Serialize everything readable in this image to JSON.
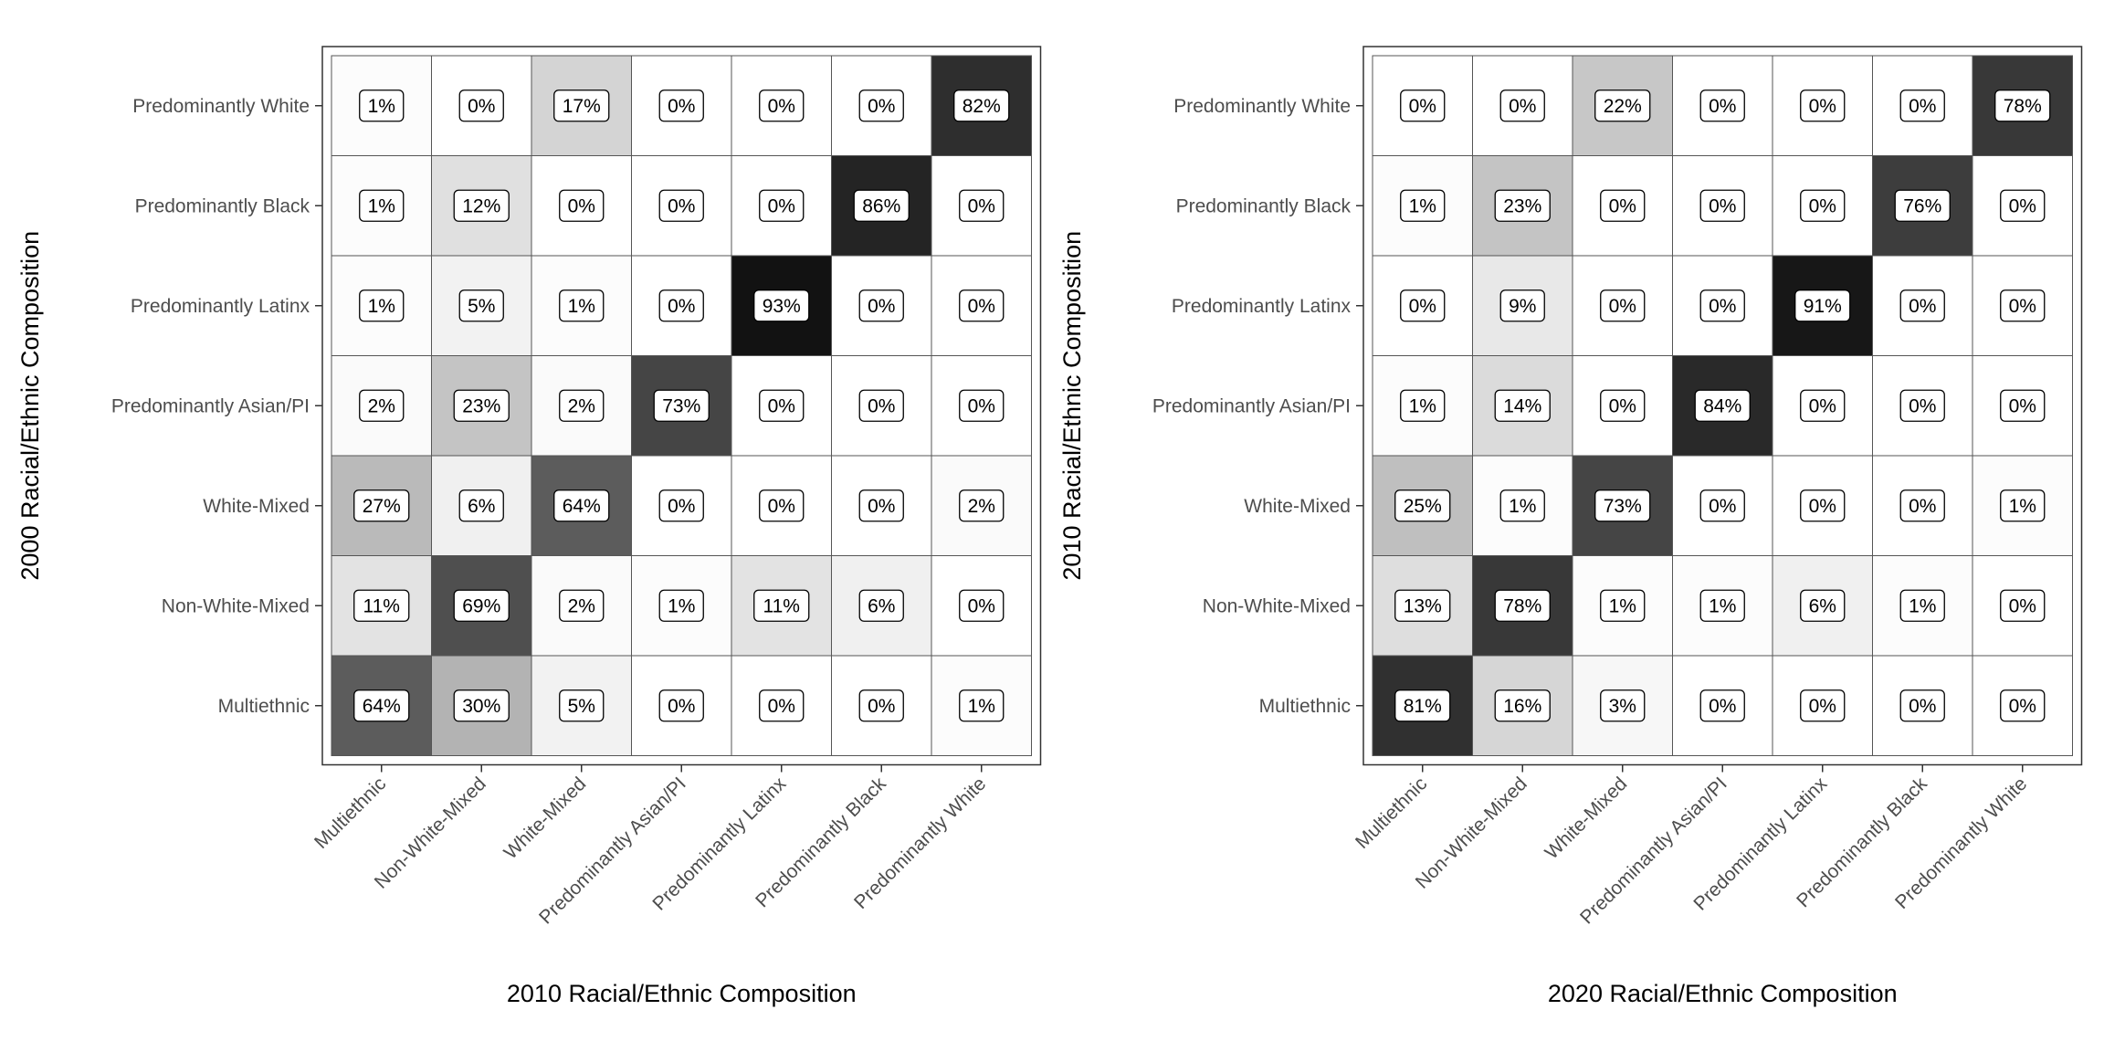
{
  "chart_data": [
    {
      "type": "heatmap",
      "xlabel": "2010 Racial/Ethnic Composition",
      "ylabel": "2000 Racial/Ethnic Composition",
      "x_categories": [
        "Multiethnic",
        "Non-White-Mixed",
        "White-Mixed",
        "Predominantly Asian/PI",
        "Predominantly Latinx",
        "Predominantly Black",
        "Predominantly White"
      ],
      "y_categories": [
        "Predominantly White",
        "Predominantly Black",
        "Predominantly Latinx",
        "Predominantly Asian/PI",
        "White-Mixed",
        "Non-White-Mixed",
        "Multiethnic"
      ],
      "values": [
        [
          1,
          0,
          17,
          0,
          0,
          0,
          82
        ],
        [
          1,
          12,
          0,
          0,
          0,
          86,
          0
        ],
        [
          1,
          5,
          1,
          0,
          93,
          0,
          0
        ],
        [
          2,
          23,
          2,
          73,
          0,
          0,
          0
        ],
        [
          27,
          6,
          64,
          0,
          0,
          0,
          2
        ],
        [
          11,
          69,
          2,
          1,
          11,
          6,
          0
        ],
        [
          64,
          30,
          5,
          0,
          0,
          0,
          1
        ]
      ],
      "value_suffix": "%",
      "color_scale": {
        "low": "#ffffff",
        "high": "#000000",
        "range": [
          0,
          100
        ]
      },
      "grid": false,
      "legend": "none"
    },
    {
      "type": "heatmap",
      "xlabel": "2020 Racial/Ethnic Composition",
      "ylabel": "2010 Racial/Ethnic Composition",
      "x_categories": [
        "Multiethnic",
        "Non-White-Mixed",
        "White-Mixed",
        "Predominantly Asian/PI",
        "Predominantly Latinx",
        "Predominantly Black",
        "Predominantly White"
      ],
      "y_categories": [
        "Predominantly White",
        "Predominantly Black",
        "Predominantly Latinx",
        "Predominantly Asian/PI",
        "White-Mixed",
        "Non-White-Mixed",
        "Multiethnic"
      ],
      "values": [
        [
          0,
          0,
          22,
          0,
          0,
          0,
          78
        ],
        [
          1,
          23,
          0,
          0,
          0,
          76,
          0
        ],
        [
          0,
          9,
          0,
          0,
          91,
          0,
          0
        ],
        [
          1,
          14,
          0,
          84,
          0,
          0,
          0
        ],
        [
          25,
          1,
          73,
          0,
          0,
          0,
          1
        ],
        [
          13,
          78,
          1,
          1,
          6,
          1,
          0
        ],
        [
          81,
          16,
          3,
          0,
          0,
          0,
          0
        ]
      ],
      "value_suffix": "%",
      "color_scale": {
        "low": "#ffffff",
        "high": "#000000",
        "range": [
          0,
          100
        ]
      },
      "grid": false,
      "legend": "none"
    }
  ]
}
